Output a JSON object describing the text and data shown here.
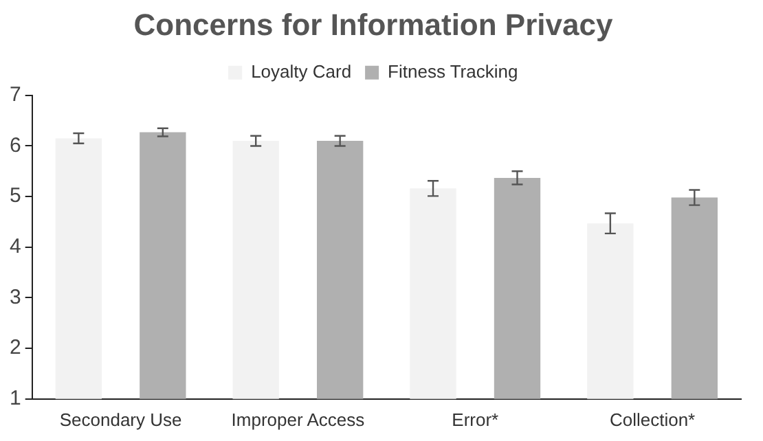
{
  "chart_data": {
    "type": "bar",
    "title": "Concerns for Information Privacy",
    "categories": [
      "Secondary Use",
      "Improper Access",
      "Error*",
      "Collection*"
    ],
    "series": [
      {
        "name": "Loyalty Card",
        "color": "#f2f2f2",
        "values": [
          6.15,
          6.1,
          5.16,
          4.47
        ],
        "errors": [
          0.1,
          0.1,
          0.15,
          0.2
        ]
      },
      {
        "name": "Fitness Tracking",
        "color": "#b0b0b0",
        "values": [
          6.27,
          6.1,
          5.37,
          4.98
        ],
        "errors": [
          0.08,
          0.1,
          0.13,
          0.15
        ]
      }
    ],
    "ylim": [
      1,
      7
    ],
    "yticks": [
      1,
      2,
      3,
      4,
      5,
      6,
      7
    ],
    "grid": false,
    "legend": "top"
  }
}
